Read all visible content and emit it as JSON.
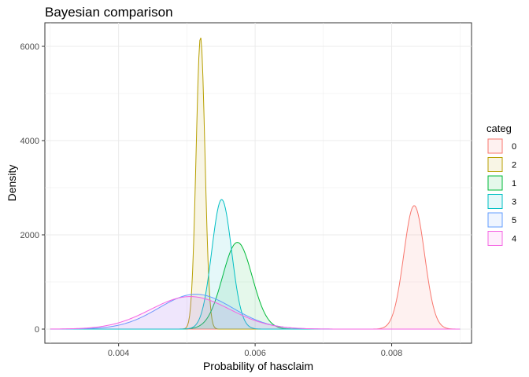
{
  "chart_data": {
    "type": "area",
    "title": "Bayesian comparison",
    "xlabel": "Probability of hasclaim",
    "ylabel": "Density",
    "xlim": [
      0.00292,
      0.00917
    ],
    "ylim": [
      -300,
      6500
    ],
    "x_ticks": [
      0.004,
      0.006,
      0.008
    ],
    "x_tick_labels": [
      "0.004",
      "0.006",
      "0.008"
    ],
    "y_ticks": [
      0,
      2000,
      4000,
      6000
    ],
    "y_tick_labels": [
      "0",
      "2000",
      "4000",
      "6000"
    ],
    "grid": true,
    "legend": {
      "title": "categ",
      "position": "right"
    },
    "fill_opacity": 0.1,
    "support": [
      0.003,
      0.009
    ],
    "series": [
      {
        "name": "0",
        "color": "#F8766D",
        "peak_x": 0.00833,
        "peak_density": 2620,
        "spread_sd": 0.000152
      },
      {
        "name": "2",
        "color": "#B79F00",
        "peak_x": 0.0052,
        "peak_density": 6200,
        "spread_sd": 6.45e-05
      },
      {
        "name": "1",
        "color": "#00BA38",
        "peak_x": 0.00574,
        "peak_density": 1840,
        "spread_sd": 0.000217
      },
      {
        "name": "3",
        "color": "#00BFC4",
        "peak_x": 0.00551,
        "peak_density": 2750,
        "spread_sd": 0.000145
      },
      {
        "name": "5",
        "color": "#619CFF",
        "peak_x": 0.00513,
        "peak_density": 740,
        "spread_sd": 0.00054
      },
      {
        "name": "4",
        "color": "#F564E3",
        "peak_x": 0.00505,
        "peak_density": 690,
        "spread_sd": 0.00058
      }
    ]
  }
}
